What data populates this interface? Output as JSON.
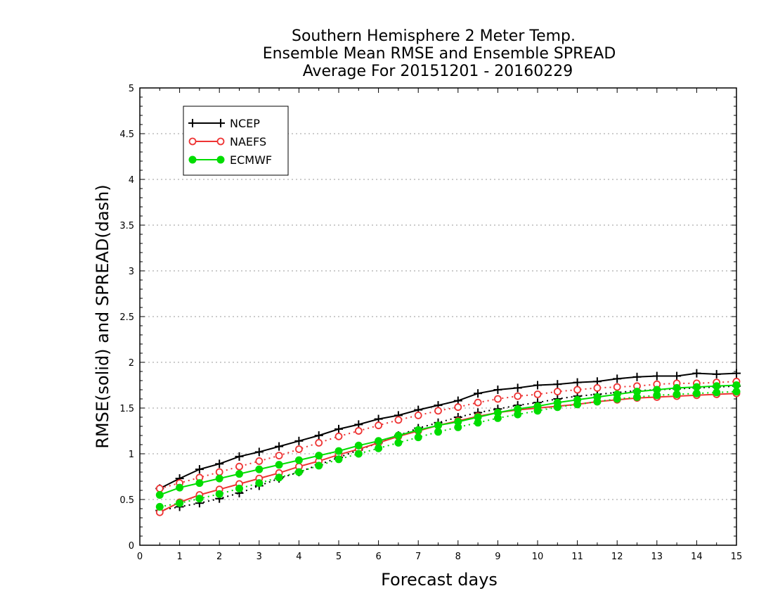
{
  "chart_data": {
    "type": "line",
    "title_lines": [
      "Southern Hemisphere 2 Meter Temp.",
      "Ensemble Mean RMSE and Ensemble SPREAD",
      "Average For 20151201 - 20160229"
    ],
    "xlabel": "Forecast days",
    "ylabel": "RMSE(solid) and SPREAD(dash)",
    "xlim": [
      0,
      15
    ],
    "ylim": [
      0,
      5
    ],
    "x_ticks": [
      "0",
      "1",
      "2",
      "3",
      "4",
      "5",
      "6",
      "7",
      "8",
      "9",
      "10",
      "11",
      "12",
      "13",
      "14",
      "15"
    ],
    "y_ticks": [
      "0",
      "0.5",
      "1",
      "1.5",
      "2",
      "2.5",
      "3",
      "3.5",
      "4",
      "4.5",
      "5"
    ],
    "grid": "horizontal dotted",
    "legend_position": "top-left",
    "x": [
      0.5,
      1,
      1.5,
      2,
      2.5,
      3,
      3.5,
      4,
      4.5,
      5,
      5.5,
      6,
      6.5,
      7,
      7.5,
      8,
      8.5,
      9,
      9.5,
      10,
      10.5,
      11,
      11.5,
      12,
      12.5,
      13,
      13.5,
      14,
      14.5,
      15
    ],
    "series": [
      {
        "name": "NCEP",
        "color": "#000000",
        "marker": "plus",
        "rmse": [
          0.62,
          0.73,
          0.83,
          0.89,
          0.97,
          1.02,
          1.08,
          1.14,
          1.2,
          1.27,
          1.32,
          1.38,
          1.42,
          1.48,
          1.53,
          1.58,
          1.66,
          1.7,
          1.72,
          1.75,
          1.76,
          1.78,
          1.79,
          1.82,
          1.84,
          1.85,
          1.85,
          1.88,
          1.87,
          1.88
        ],
        "spread": [
          0.38,
          0.42,
          0.46,
          0.51,
          0.57,
          0.65,
          0.73,
          0.8,
          0.88,
          0.96,
          1.04,
          1.12,
          1.2,
          1.28,
          1.34,
          1.4,
          1.45,
          1.49,
          1.53,
          1.56,
          1.6,
          1.63,
          1.65,
          1.67,
          1.69,
          1.7,
          1.71,
          1.72,
          1.73,
          1.74
        ]
      },
      {
        "name": "NAEFS",
        "color": "#ee3333",
        "marker": "open-circle",
        "rmse": [
          0.36,
          0.47,
          0.55,
          0.61,
          0.67,
          0.73,
          0.79,
          0.86,
          0.92,
          0.99,
          1.05,
          1.12,
          1.19,
          1.25,
          1.31,
          1.36,
          1.41,
          1.45,
          1.48,
          1.5,
          1.52,
          1.54,
          1.57,
          1.59,
          1.61,
          1.62,
          1.63,
          1.64,
          1.65,
          1.66
        ],
        "spread": [
          0.62,
          0.68,
          0.74,
          0.8,
          0.86,
          0.92,
          0.98,
          1.05,
          1.12,
          1.19,
          1.25,
          1.31,
          1.37,
          1.42,
          1.47,
          1.51,
          1.56,
          1.6,
          1.63,
          1.65,
          1.68,
          1.7,
          1.72,
          1.73,
          1.74,
          1.76,
          1.77,
          1.77,
          1.78,
          1.79
        ]
      },
      {
        "name": "ECMWF",
        "color": "#00dd00",
        "marker": "filled-circle",
        "rmse": [
          0.55,
          0.63,
          0.68,
          0.73,
          0.78,
          0.83,
          0.88,
          0.93,
          0.98,
          1.03,
          1.09,
          1.14,
          1.2,
          1.26,
          1.31,
          1.35,
          1.4,
          1.45,
          1.49,
          1.52,
          1.56,
          1.59,
          1.62,
          1.65,
          1.68,
          1.7,
          1.72,
          1.73,
          1.74,
          1.75
        ],
        "spread": [
          0.42,
          0.46,
          0.51,
          0.56,
          0.62,
          0.68,
          0.74,
          0.8,
          0.87,
          0.94,
          1.0,
          1.06,
          1.12,
          1.18,
          1.24,
          1.29,
          1.34,
          1.39,
          1.43,
          1.47,
          1.51,
          1.54,
          1.57,
          1.6,
          1.62,
          1.64,
          1.65,
          1.66,
          1.67,
          1.68
        ]
      }
    ]
  }
}
